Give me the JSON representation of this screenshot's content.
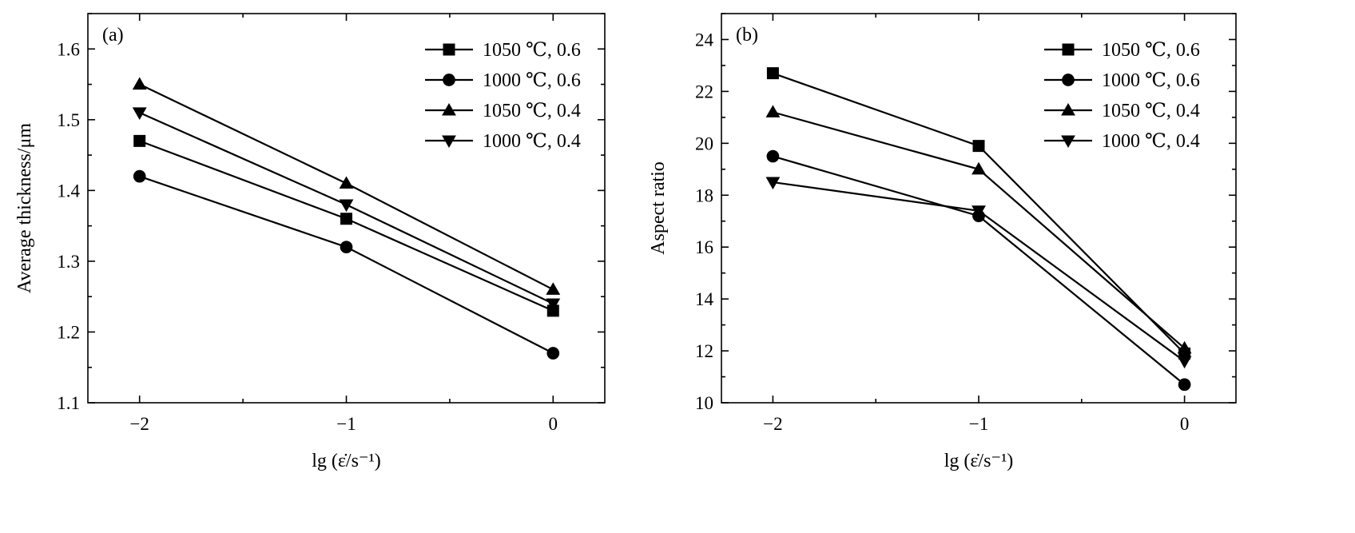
{
  "chart_data": [
    {
      "type": "line",
      "panel_label": "(a)",
      "xlabel": "lg (ε̇/s⁻¹)",
      "ylabel": "Average thickness/μm",
      "x": [
        -2,
        -1,
        0
      ],
      "xlim": [
        -2.25,
        0.25
      ],
      "ylim": [
        1.1,
        1.65
      ],
      "xticks": [
        -2,
        -1,
        0
      ],
      "xtick_labels": [
        "−2",
        "−1",
        "0"
      ],
      "yticks": [
        1.1,
        1.2,
        1.3,
        1.4,
        1.5,
        1.6
      ],
      "ytick_labels": [
        "1.1",
        "1.2",
        "1.3",
        "1.4",
        "1.5",
        "1.6"
      ],
      "grid": false,
      "legend_position": "top-right",
      "series": [
        {
          "name": "1050 ℃, 0.6",
          "marker": "square",
          "values": [
            1.47,
            1.36,
            1.23
          ]
        },
        {
          "name": "1000 ℃, 0.6",
          "marker": "circle",
          "values": [
            1.42,
            1.32,
            1.17
          ]
        },
        {
          "name": "1050 ℃, 0.4",
          "marker": "triangle-up",
          "values": [
            1.55,
            1.41,
            1.26
          ]
        },
        {
          "name": "1000 ℃, 0.4",
          "marker": "triangle-down",
          "values": [
            1.51,
            1.38,
            1.24
          ]
        }
      ]
    },
    {
      "type": "line",
      "panel_label": "(b)",
      "xlabel": "lg (ε̇/s⁻¹)",
      "ylabel": "Aspect ratio",
      "x": [
        -2,
        -1,
        0
      ],
      "xlim": [
        -2.25,
        0.25
      ],
      "ylim": [
        10,
        25
      ],
      "xticks": [
        -2,
        -1,
        0
      ],
      "xtick_labels": [
        "−2",
        "−1",
        "0"
      ],
      "yticks": [
        10,
        12,
        14,
        16,
        18,
        20,
        22,
        24
      ],
      "ytick_labels": [
        "10",
        "12",
        "14",
        "16",
        "18",
        "20",
        "22",
        "24"
      ],
      "grid": false,
      "legend_position": "top-right",
      "series": [
        {
          "name": "1050 ℃, 0.6",
          "marker": "square",
          "values": [
            22.7,
            19.9,
            11.9
          ]
        },
        {
          "name": "1000 ℃, 0.6",
          "marker": "circle",
          "values": [
            19.5,
            17.2,
            10.7
          ]
        },
        {
          "name": "1050 ℃, 0.4",
          "marker": "triangle-up",
          "values": [
            21.2,
            19.0,
            12.1
          ]
        },
        {
          "name": "1000 ℃, 0.4",
          "marker": "triangle-down",
          "values": [
            18.5,
            17.4,
            11.6
          ]
        }
      ]
    }
  ]
}
